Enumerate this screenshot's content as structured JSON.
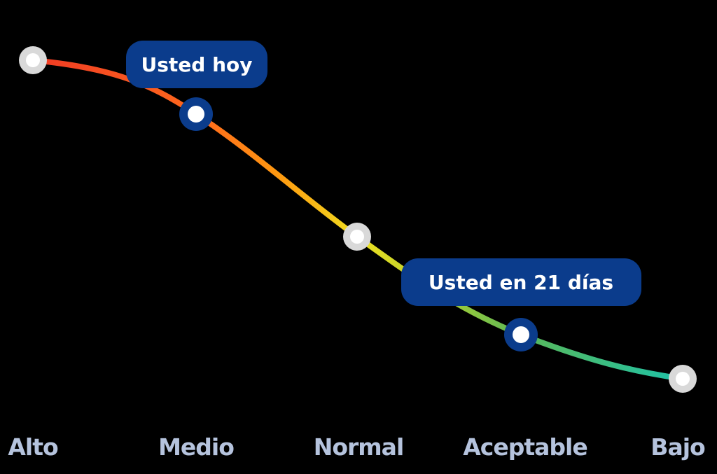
{
  "levels": [
    "Alto",
    "Medio",
    "Normal",
    "Aceptable",
    "Bajo"
  ],
  "callouts": {
    "today": "Usted hoy",
    "future": "Usted en 21 días"
  },
  "colors": {
    "background": "#000000",
    "marker_blue": "#0b3c8c",
    "marker_gray": "#d9d9d9",
    "label_color": "#b5c3dd",
    "gradient": [
      "#f03a24",
      "#ff7a1a",
      "#f0e020",
      "#6ab84a",
      "#1ec2a8"
    ]
  }
}
